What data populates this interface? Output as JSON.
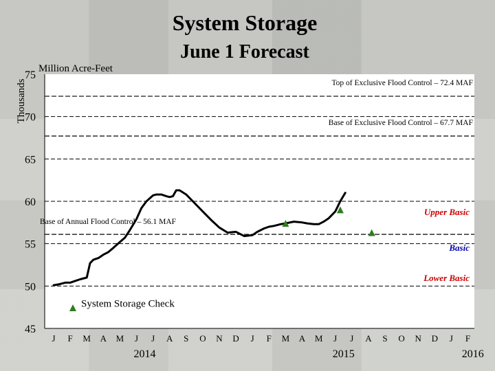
{
  "chart_data": {
    "type": "line",
    "title": "System Storage",
    "subtitle": "June 1 Forecast",
    "ylabel": "Thousands",
    "yunit": "Million Acre-Feet",
    "ylim": [
      45,
      75
    ],
    "yticks": [
      "45",
      "50",
      "55",
      "60",
      "65",
      "70",
      "75"
    ],
    "x_months": [
      "J",
      "F",
      "M",
      "A",
      "M",
      "J",
      "J",
      "A",
      "S",
      "O",
      "N",
      "D",
      "J",
      "F",
      "M",
      "A",
      "M",
      "J",
      "J",
      "A",
      "S",
      "O",
      "N",
      "D",
      "J",
      "F"
    ],
    "x_years": [
      {
        "label": "2014",
        "month_index": 5.5
      },
      {
        "label": "2015",
        "month_index": 17.5
      },
      {
        "label": "2016",
        "month_index": 25.3
      }
    ],
    "grid": true,
    "reference_lines": [
      {
        "value": 72.4,
        "label": "Top of Exclusive Flood Control – 72.4 MAF",
        "style": "dashed"
      },
      {
        "value": 67.7,
        "label": "Base of Exclusive Flood Control – 67.7 MAF",
        "style": "dashed"
      },
      {
        "value": 56.1,
        "label": "Base of Annual Flood Control – 56.1 MAF",
        "style": "dashed"
      }
    ],
    "zone_labels": [
      {
        "label": "Upper Basic",
        "value": 58.7,
        "color": "#cc0000"
      },
      {
        "label": "Basic",
        "value": 54.5,
        "color": "#0000aa"
      },
      {
        "label": "Lower Basic",
        "value": 50.9,
        "color": "#cc0000"
      }
    ],
    "series": [
      {
        "color": "#000000",
        "x": [
          0,
          0.3,
          0.7,
          1,
          1.3,
          1.6,
          2,
          2.2,
          2.4,
          2.7,
          3,
          3.3,
          3.6,
          4,
          4.3,
          4.6,
          5,
          5.3,
          5.6,
          6,
          6.2,
          6.5,
          6.8,
          7,
          7.2,
          7.4,
          7.6,
          8,
          8.5,
          9,
          9.5,
          10,
          10.5,
          11,
          11.5,
          12,
          12.3,
          12.7,
          13,
          13.3,
          13.7,
          14,
          14.5,
          15,
          15.3,
          15.7,
          16,
          16.3,
          16.6,
          17,
          17.3,
          17.6
        ],
        "y": [
          50.1,
          50.2,
          50.4,
          50.4,
          50.6,
          50.8,
          51,
          52.7,
          53.1,
          53.3,
          53.7,
          54,
          54.5,
          55.2,
          55.7,
          56.6,
          57.9,
          59.2,
          60,
          60.7,
          60.8,
          60.8,
          60.6,
          60.5,
          60.6,
          61.3,
          61.3,
          60.8,
          59.8,
          58.8,
          57.8,
          56.9,
          56.3,
          56.4,
          55.9,
          56,
          56.4,
          56.8,
          57,
          57.1,
          57.3,
          57.4,
          57.6,
          57.5,
          57.4,
          57.3,
          57.3,
          57.6,
          58,
          58.8,
          60,
          61
        ]
      }
    ],
    "check_points": [
      {
        "x": 14,
        "y": 57.4
      },
      {
        "x": 17.3,
        "y": 59
      },
      {
        "x": 19.2,
        "y": 56.3
      }
    ],
    "legend": {
      "label": "System Storage Check",
      "marker_color": "#2e7d1e",
      "position": "bottom-left"
    }
  }
}
